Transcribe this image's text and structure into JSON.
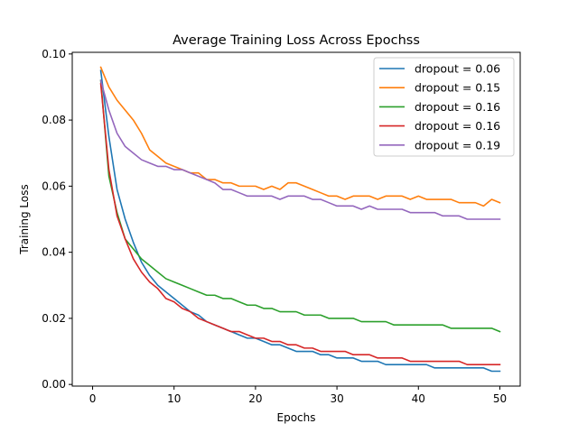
{
  "chart_data": {
    "type": "line",
    "title": "Average Training Loss Across Epochss",
    "xlabel": "Epochs",
    "ylabel": "Training Loss",
    "xlim": [
      -2.5,
      52.5
    ],
    "ylim": [
      -0.0005,
      0.1005
    ],
    "xticks": [
      0,
      10,
      20,
      30,
      40,
      50
    ],
    "yticks": [
      0.0,
      0.02,
      0.04,
      0.06,
      0.08,
      0.1
    ],
    "xtick_labels": [
      "0",
      "10",
      "20",
      "30",
      "40",
      "50"
    ],
    "ytick_labels": [
      "0.00",
      "0.02",
      "0.04",
      "0.06",
      "0.08",
      "0.10"
    ],
    "grid": false,
    "legend_position": "top-right",
    "x": [
      1,
      2,
      3,
      4,
      5,
      6,
      7,
      8,
      9,
      10,
      11,
      12,
      13,
      14,
      15,
      16,
      17,
      18,
      19,
      20,
      21,
      22,
      23,
      24,
      25,
      26,
      27,
      28,
      29,
      30,
      31,
      32,
      33,
      34,
      35,
      36,
      37,
      38,
      39,
      40,
      41,
      42,
      43,
      44,
      45,
      46,
      47,
      48,
      49,
      50
    ],
    "series": [
      {
        "name": "dropout = 0.06",
        "color": "#1f77b4",
        "values": [
          0.095,
          0.075,
          0.059,
          0.05,
          0.043,
          0.037,
          0.033,
          0.03,
          0.028,
          0.026,
          0.024,
          0.022,
          0.021,
          0.019,
          0.018,
          0.017,
          0.016,
          0.015,
          0.014,
          0.014,
          0.013,
          0.012,
          0.012,
          0.011,
          0.01,
          0.01,
          0.01,
          0.009,
          0.009,
          0.008,
          0.008,
          0.008,
          0.007,
          0.007,
          0.007,
          0.006,
          0.006,
          0.006,
          0.006,
          0.006,
          0.006,
          0.005,
          0.005,
          0.005,
          0.005,
          0.005,
          0.005,
          0.005,
          0.004,
          0.004
        ]
      },
      {
        "name": "dropout = 0.15",
        "color": "#ff7f0e",
        "values": [
          0.096,
          0.09,
          0.086,
          0.083,
          0.08,
          0.076,
          0.071,
          0.069,
          0.067,
          0.066,
          0.065,
          0.064,
          0.064,
          0.062,
          0.062,
          0.061,
          0.061,
          0.06,
          0.06,
          0.06,
          0.059,
          0.06,
          0.059,
          0.061,
          0.061,
          0.06,
          0.059,
          0.058,
          0.057,
          0.057,
          0.056,
          0.057,
          0.057,
          0.057,
          0.056,
          0.057,
          0.057,
          0.057,
          0.056,
          0.057,
          0.056,
          0.056,
          0.056,
          0.056,
          0.055,
          0.055,
          0.055,
          0.054,
          0.056,
          0.055
        ]
      },
      {
        "name": "dropout = 0.16",
        "color": "#2ca02c",
        "values": [
          0.092,
          0.063,
          0.052,
          0.044,
          0.041,
          0.038,
          0.036,
          0.034,
          0.032,
          0.031,
          0.03,
          0.029,
          0.028,
          0.027,
          0.027,
          0.026,
          0.026,
          0.025,
          0.024,
          0.024,
          0.023,
          0.023,
          0.022,
          0.022,
          0.022,
          0.021,
          0.021,
          0.021,
          0.02,
          0.02,
          0.02,
          0.02,
          0.019,
          0.019,
          0.019,
          0.019,
          0.018,
          0.018,
          0.018,
          0.018,
          0.018,
          0.018,
          0.018,
          0.017,
          0.017,
          0.017,
          0.017,
          0.017,
          0.017,
          0.016
        ]
      },
      {
        "name": "dropout = 0.16",
        "color": "#d62728",
        "values": [
          0.091,
          0.065,
          0.051,
          0.044,
          0.038,
          0.034,
          0.031,
          0.029,
          0.026,
          0.025,
          0.023,
          0.022,
          0.02,
          0.019,
          0.018,
          0.017,
          0.016,
          0.016,
          0.015,
          0.014,
          0.014,
          0.013,
          0.013,
          0.012,
          0.012,
          0.011,
          0.011,
          0.01,
          0.01,
          0.01,
          0.01,
          0.009,
          0.009,
          0.009,
          0.008,
          0.008,
          0.008,
          0.008,
          0.007,
          0.007,
          0.007,
          0.007,
          0.007,
          0.007,
          0.007,
          0.006,
          0.006,
          0.006,
          0.006,
          0.006
        ]
      },
      {
        "name": "dropout = 0.19",
        "color": "#9467bd",
        "values": [
          0.092,
          0.083,
          0.076,
          0.072,
          0.07,
          0.068,
          0.067,
          0.066,
          0.066,
          0.065,
          0.065,
          0.064,
          0.063,
          0.062,
          0.061,
          0.059,
          0.059,
          0.058,
          0.057,
          0.057,
          0.057,
          0.057,
          0.056,
          0.057,
          0.057,
          0.057,
          0.056,
          0.056,
          0.055,
          0.054,
          0.054,
          0.054,
          0.053,
          0.054,
          0.053,
          0.053,
          0.053,
          0.053,
          0.052,
          0.052,
          0.052,
          0.052,
          0.051,
          0.051,
          0.051,
          0.05,
          0.05,
          0.05,
          0.05,
          0.05
        ]
      }
    ]
  }
}
